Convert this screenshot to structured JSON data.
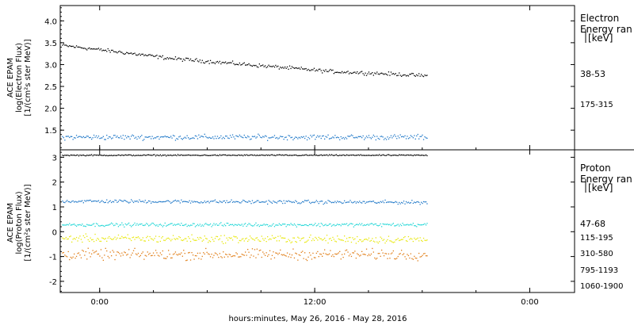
{
  "xaxis": {
    "label": "hours:minutes, May 26, 2016 - May 28, 2016",
    "ticks": [
      {
        "t": 0,
        "label": "0:00"
      },
      {
        "t": 12,
        "label": "12:00"
      },
      {
        "t": 24,
        "label": "0:00"
      }
    ],
    "range_hours": [
      -2.2,
      26.5
    ]
  },
  "colors": {
    "black": "#000000",
    "blue": "#1f78c8",
    "cyan": "#1fd6d6",
    "yellow": "#e8e80a",
    "orange": "#e07c14"
  },
  "chart_data": [
    {
      "type": "scatter",
      "name": "electron",
      "ylabel_lines": [
        "ACE EPAM",
        "log(Electron Flux)",
        "[1/(cm²s ster MeV)]"
      ],
      "ylim": [
        1.05,
        4.35
      ],
      "yticks": [
        "4.0",
        "3.5",
        "3.0",
        "2.5",
        "2.0",
        "1.5"
      ],
      "ytick_values": [
        4.0,
        3.5,
        3.0,
        2.5,
        2.0,
        1.5
      ],
      "legend_title": [
        "Electron",
        "Energy ran",
        "[keV]"
      ],
      "series": [
        {
          "label": "38-53",
          "color": "black",
          "x": [
            -2.1,
            1,
            4,
            7,
            10,
            13,
            16,
            18.3
          ],
          "y": [
            3.45,
            3.3,
            3.15,
            3.05,
            2.95,
            2.85,
            2.8,
            2.75
          ]
        },
        {
          "label": "175-315",
          "color": "blue",
          "x": [
            -2.1,
            18.3
          ],
          "y": [
            1.35,
            1.35
          ]
        }
      ]
    },
    {
      "type": "scatter",
      "name": "proton",
      "ylabel_lines": [
        "ACE EPAM",
        "log(Proton Flux)",
        "[1/(cm²s ster MeV)]"
      ],
      "ylim": [
        -2.45,
        3.3
      ],
      "yticks": [
        "3",
        "2",
        "1",
        "0",
        "-1",
        "-2"
      ],
      "ytick_values": [
        3,
        2,
        1,
        0,
        -1,
        -2
      ],
      "legend_title": [
        "Proton",
        "Energy ran",
        "[keV]"
      ],
      "series": [
        {
          "label": "47-68",
          "color": "black",
          "x": [
            -2.1,
            18.3
          ],
          "y": [
            3.1,
            3.1
          ]
        },
        {
          "label": "115-195",
          "color": "blue",
          "x": [
            -2.1,
            18.3
          ],
          "y": [
            1.25,
            1.2
          ]
        },
        {
          "label": "310-580",
          "color": "cyan",
          "x": [
            -2.1,
            18.3
          ],
          "y": [
            0.3,
            0.3
          ]
        },
        {
          "label": "795-1193",
          "color": "yellow",
          "x": [
            -2.1,
            18.3
          ],
          "y": [
            -0.25,
            -0.3
          ]
        },
        {
          "label": "1060-1900",
          "color": "orange",
          "x": [
            -2.1,
            18.3
          ],
          "y": [
            -0.9,
            -0.9
          ]
        }
      ]
    }
  ]
}
